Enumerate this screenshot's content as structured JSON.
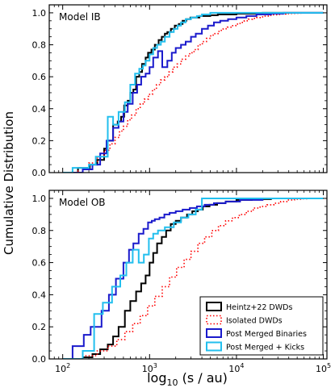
{
  "figure": {
    "ylabel_shared": "Cumulative Distribution",
    "xlabel_prefix": "log",
    "xlabel_sub": "10",
    "xlabel_rest": " (s / au)"
  },
  "chart_data": [
    {
      "type": "line",
      "subtype": "step-cdf",
      "annotation": "Model IB",
      "xscale": "log",
      "xlim": [
        70,
        110000
      ],
      "ylim": [
        0,
        1.05
      ],
      "yticks": [
        "0.0",
        "0.2",
        "0.4",
        "0.6",
        "0.8",
        "1.0"
      ],
      "xtick_labels_shown": false,
      "series": [
        {
          "name": "Heintz+22 DWDs",
          "color": "#000000",
          "style": "solid",
          "x": [
            100,
            150,
            205,
            250,
            300,
            330,
            380,
            430,
            470,
            510,
            560,
            600,
            650,
            700,
            760,
            820,
            900,
            960,
            1050,
            1150,
            1270,
            1380,
            1500,
            1600,
            1760,
            1950,
            2170,
            2400,
            2650,
            2950,
            3300,
            3750,
            4300,
            5000,
            6100,
            7500,
            10000,
            14000,
            20000,
            30000,
            40000,
            60000,
            100000
          ],
          "y": [
            0.0,
            0.03,
            0.05,
            0.08,
            0.15,
            0.2,
            0.3,
            0.32,
            0.35,
            0.42,
            0.45,
            0.5,
            0.52,
            0.6,
            0.63,
            0.68,
            0.72,
            0.75,
            0.77,
            0.8,
            0.83,
            0.85,
            0.87,
            0.88,
            0.9,
            0.92,
            0.93,
            0.95,
            0.96,
            0.97,
            0.97,
            0.98,
            0.98,
            0.985,
            0.99,
            0.99,
            0.995,
            0.995,
            1.0,
            1.0,
            1.0,
            1.0,
            1.0
          ]
        },
        {
          "name": "Isolated DWDs",
          "color": "#ff0000",
          "style": "dotted",
          "x": [
            100,
            150,
            200,
            250,
            300,
            350,
            400,
            450,
            500,
            560,
            620,
            700,
            780,
            870,
            970,
            1080,
            1200,
            1340,
            1500,
            1670,
            1860,
            2080,
            2320,
            2600,
            2900,
            3250,
            3620,
            4050,
            4520,
            5050,
            5640,
            6300,
            7040,
            7870,
            8790,
            9820,
            11000,
            12300,
            13700,
            15300,
            17100,
            19100,
            21400,
            23900,
            26700,
            29800,
            33300,
            37200,
            41600,
            46500,
            52000,
            58000,
            65000,
            72600,
            81100,
            90600,
            100000
          ],
          "y": [
            0.0,
            0.03,
            0.06,
            0.1,
            0.14,
            0.18,
            0.22,
            0.26,
            0.29,
            0.33,
            0.36,
            0.4,
            0.43,
            0.46,
            0.49,
            0.52,
            0.55,
            0.58,
            0.6,
            0.63,
            0.66,
            0.68,
            0.71,
            0.73,
            0.75,
            0.77,
            0.8,
            0.82,
            0.84,
            0.86,
            0.87,
            0.89,
            0.9,
            0.91,
            0.92,
            0.93,
            0.94,
            0.95,
            0.96,
            0.965,
            0.97,
            0.975,
            0.98,
            0.984,
            0.988,
            0.99,
            0.993,
            0.995,
            0.996,
            0.997,
            0.998,
            0.999,
            0.999,
            1.0,
            1.0,
            1.0,
            1.0
          ]
        },
        {
          "name": "Post Merged Binaries",
          "color": "#1a1acc",
          "style": "solid",
          "x": [
            100,
            170,
            220,
            270,
            320,
            380,
            440,
            500,
            560,
            640,
            720,
            800,
            900,
            1000,
            1100,
            1250,
            1400,
            1600,
            1800,
            2000,
            2300,
            2600,
            3000,
            3400,
            4000,
            4700,
            5500,
            6500,
            8000,
            10000,
            13000,
            17000,
            25000,
            35000,
            50000,
            100000
          ],
          "y": [
            0.0,
            0.02,
            0.05,
            0.12,
            0.2,
            0.28,
            0.32,
            0.38,
            0.43,
            0.5,
            0.55,
            0.6,
            0.62,
            0.66,
            0.72,
            0.76,
            0.66,
            0.7,
            0.75,
            0.78,
            0.8,
            0.82,
            0.85,
            0.87,
            0.9,
            0.92,
            0.94,
            0.95,
            0.96,
            0.97,
            0.98,
            0.99,
            0.995,
            1.0,
            1.0,
            1.0
          ]
        },
        {
          "name": "Post Merged + Kicks",
          "color": "#22bfee",
          "style": "solid",
          "x": [
            100,
            130,
            200,
            240,
            330,
            380,
            440,
            520,
            600,
            680,
            760,
            840,
            900,
            1000,
            1100,
            1220,
            1350,
            1500,
            1700,
            1900,
            2100,
            2300,
            2600,
            3000,
            3500,
            4000,
            5000,
            10000,
            100000
          ],
          "y": [
            0.0,
            0.03,
            0.05,
            0.1,
            0.35,
            0.3,
            0.38,
            0.44,
            0.55,
            0.62,
            0.65,
            0.67,
            0.7,
            0.74,
            0.78,
            0.8,
            0.82,
            0.85,
            0.88,
            0.9,
            0.92,
            0.94,
            0.96,
            0.97,
            0.98,
            0.99,
            1.0,
            1.0,
            1.0
          ]
        }
      ]
    },
    {
      "type": "line",
      "subtype": "step-cdf",
      "annotation": "Model OB",
      "xscale": "log",
      "xlim": [
        70,
        110000
      ],
      "ylim": [
        0,
        1.05
      ],
      "yticks": [
        "0.0",
        "0.2",
        "0.4",
        "0.6",
        "0.8",
        "1.0"
      ],
      "xtick_labels": [
        "10",
        "10",
        "10",
        "10"
      ],
      "xtick_exponents": [
        "2",
        "3",
        "4",
        "5"
      ],
      "xtick_values": [
        100,
        1000,
        10000,
        100000
      ],
      "legend_position": "bottom-right",
      "series": [
        {
          "name": "Heintz+22 DWDs",
          "color": "#000000",
          "style": "solid",
          "x": [
            100,
            170,
            220,
            270,
            330,
            380,
            440,
            520,
            600,
            700,
            800,
            900,
            1000,
            1100,
            1220,
            1380,
            1550,
            1750,
            2000,
            2300,
            2700,
            3100,
            3600,
            4100,
            4900,
            6000,
            7500,
            10000,
            15000,
            25000,
            50000,
            100000
          ],
          "y": [
            0.0,
            0.01,
            0.03,
            0.06,
            0.09,
            0.14,
            0.2,
            0.3,
            0.36,
            0.42,
            0.47,
            0.52,
            0.6,
            0.66,
            0.72,
            0.76,
            0.8,
            0.84,
            0.86,
            0.88,
            0.9,
            0.92,
            0.93,
            0.95,
            0.96,
            0.97,
            0.98,
            0.99,
            0.995,
            1.0,
            1.0,
            1.0
          ]
        },
        {
          "name": "Isolated DWDs",
          "color": "#ff0000",
          "style": "dotted",
          "x": [
            100,
            170,
            250,
            330,
            420,
            520,
            640,
            780,
            950,
            1150,
            1400,
            1700,
            2050,
            2500,
            3000,
            3600,
            4300,
            5200,
            6200,
            7500,
            9000,
            10800,
            13000,
            15600,
            18700,
            22400,
            26900,
            32300,
            38700,
            46400,
            55600,
            66700,
            80000,
            100000
          ],
          "y": [
            0.0,
            0.02,
            0.05,
            0.08,
            0.12,
            0.17,
            0.22,
            0.27,
            0.33,
            0.39,
            0.45,
            0.51,
            0.57,
            0.62,
            0.67,
            0.72,
            0.76,
            0.8,
            0.83,
            0.86,
            0.88,
            0.9,
            0.92,
            0.94,
            0.95,
            0.96,
            0.97,
            0.98,
            0.99,
            0.995,
            0.998,
            1.0,
            1.0,
            1.0
          ]
        },
        {
          "name": "Post Merged Binaries",
          "color": "#1a1acc",
          "style": "solid",
          "x": [
            100,
            130,
            175,
            210,
            280,
            340,
            410,
            500,
            580,
            650,
            750,
            850,
            960,
            1060,
            1150,
            1300,
            1480,
            1700,
            2000,
            2400,
            2900,
            3500,
            4300,
            5500,
            7500,
            11000,
            20000,
            50000,
            100000
          ],
          "y": [
            0.0,
            0.08,
            0.15,
            0.2,
            0.3,
            0.4,
            0.5,
            0.6,
            0.68,
            0.72,
            0.78,
            0.81,
            0.85,
            0.86,
            0.87,
            0.88,
            0.9,
            0.91,
            0.92,
            0.93,
            0.94,
            0.95,
            0.96,
            0.97,
            0.98,
            0.99,
            1.0,
            1.0,
            1.0
          ]
        },
        {
          "name": "Post Merged + Kicks",
          "color": "#22bfee",
          "style": "solid",
          "x": [
            100,
            170,
            230,
            290,
            370,
            460,
            540,
            640,
            750,
            860,
            980,
            1100,
            1250,
            1500,
            1900,
            2300,
            2800,
            3400,
            4000,
            100000
          ],
          "y": [
            0.0,
            0.05,
            0.28,
            0.35,
            0.45,
            0.52,
            0.6,
            0.68,
            0.6,
            0.65,
            0.75,
            0.78,
            0.8,
            0.82,
            0.85,
            0.88,
            0.9,
            0.93,
            1.0,
            1.0
          ]
        }
      ]
    }
  ]
}
